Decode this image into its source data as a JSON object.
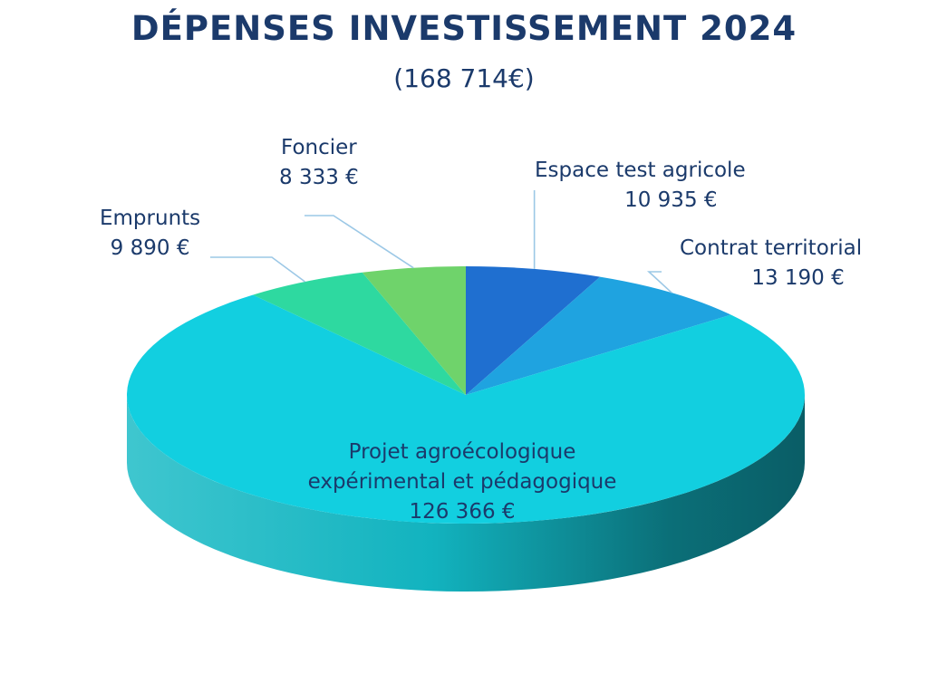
{
  "title": "DÉPENSES INVESTISSEMENT 2024",
  "subtitle": "(168 714€)",
  "chart_data": {
    "type": "pie",
    "title": "DÉPENSES INVESTISSEMENT 2024",
    "subtitle": "(168 714€)",
    "total": 168714,
    "slices": [
      {
        "label": "Espace test agricole",
        "value": 10935,
        "value_label": "10 935 €",
        "color": "#1f6fd0"
      },
      {
        "label": "Contrat territorial",
        "value": 13190,
        "value_label": "13 190 €",
        "color": "#1fa3e0"
      },
      {
        "label": "Projet agroécologique expérimental et pédagogique",
        "value": 126366,
        "value_label": "126 366 €",
        "color": "#12cfe0"
      },
      {
        "label": "Emprunts",
        "value": 9890,
        "value_label": "9 890 €",
        "color": "#2ed9a0"
      },
      {
        "label": "Foncier",
        "value": 8333,
        "value_label": "8 333 €",
        "color": "#6fd36b"
      }
    ]
  },
  "labels": {
    "espace": {
      "line1": "Espace test agricole",
      "line2": "10 935 €"
    },
    "contrat": {
      "line1": "Contrat territorial",
      "line2": "13 190 €"
    },
    "projet": {
      "line1": "Projet agroécologique",
      "line2": "expérimental et pédagogique",
      "line3": "126 366 €"
    },
    "emprunts": {
      "line1": "Emprunts",
      "line2": "9 890 €"
    },
    "foncier": {
      "line1": "Foncier",
      "line2": "8 333 €"
    }
  }
}
